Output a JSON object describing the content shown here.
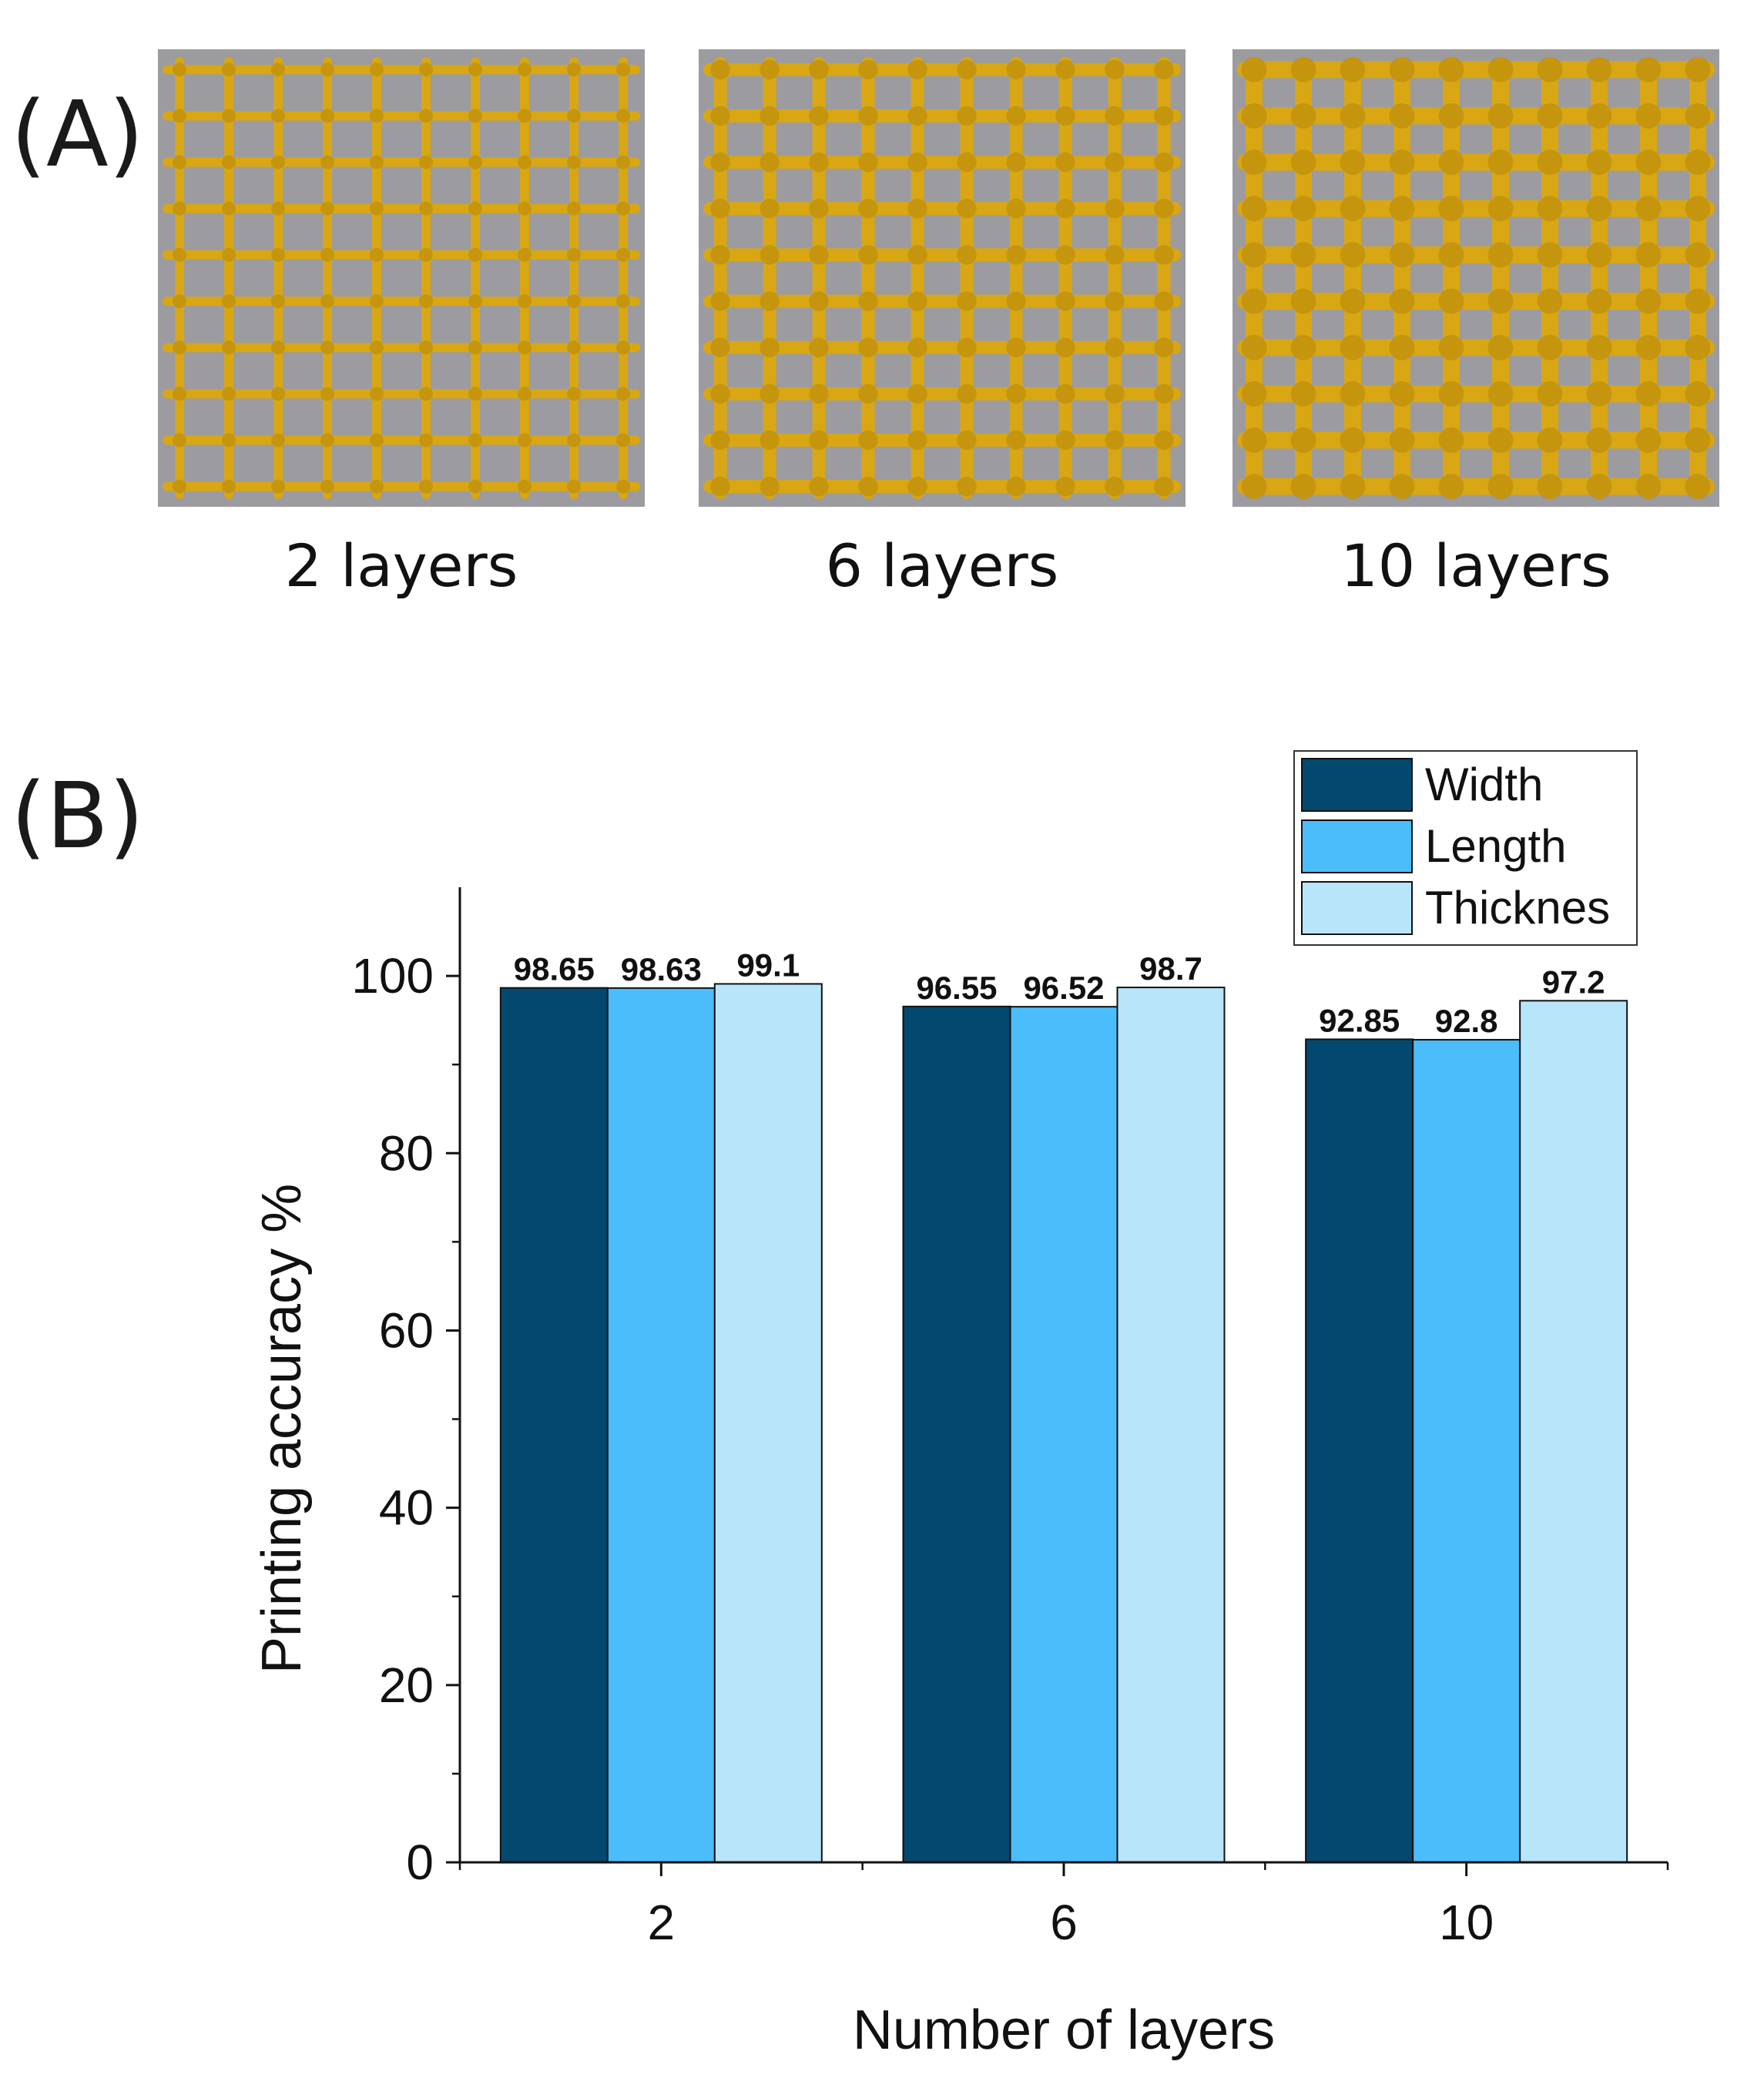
{
  "panel_a": {
    "label": "(A)",
    "samples": [
      {
        "caption": "2 layers",
        "lines": 10
      },
      {
        "caption": "6 layers",
        "lines": 10
      },
      {
        "caption": "10 layers",
        "lines": 10
      }
    ],
    "colors": {
      "background": "#9c9ba0",
      "filament": "#d8a713",
      "filament_dark": "#b8860b"
    }
  },
  "panel_b": {
    "label": "(B)"
  },
  "chart_data": {
    "type": "bar",
    "title": "",
    "xlabel": "Number of layers",
    "ylabel": "Printing accuracy %",
    "categories": [
      "2",
      "6",
      "10"
    ],
    "ylim": [
      0,
      110
    ],
    "yticks": [
      0,
      20,
      40,
      60,
      80,
      100
    ],
    "series": [
      {
        "name": "Width",
        "color": "#03486e",
        "values": [
          98.65,
          96.55,
          92.85
        ],
        "labels": [
          "98.65",
          "96.55",
          "92.85"
        ]
      },
      {
        "name": "Length",
        "color": "#4bbdfb",
        "values": [
          98.63,
          96.52,
          92.8
        ],
        "labels": [
          "98.63",
          "96.52",
          "92.8"
        ]
      },
      {
        "name": "Thicknes",
        "color": "#b9e5fb",
        "values": [
          99.1,
          98.7,
          97.2
        ],
        "labels": [
          "99.1",
          "98.7",
          "97.2"
        ]
      }
    ],
    "legend": "top-right"
  }
}
